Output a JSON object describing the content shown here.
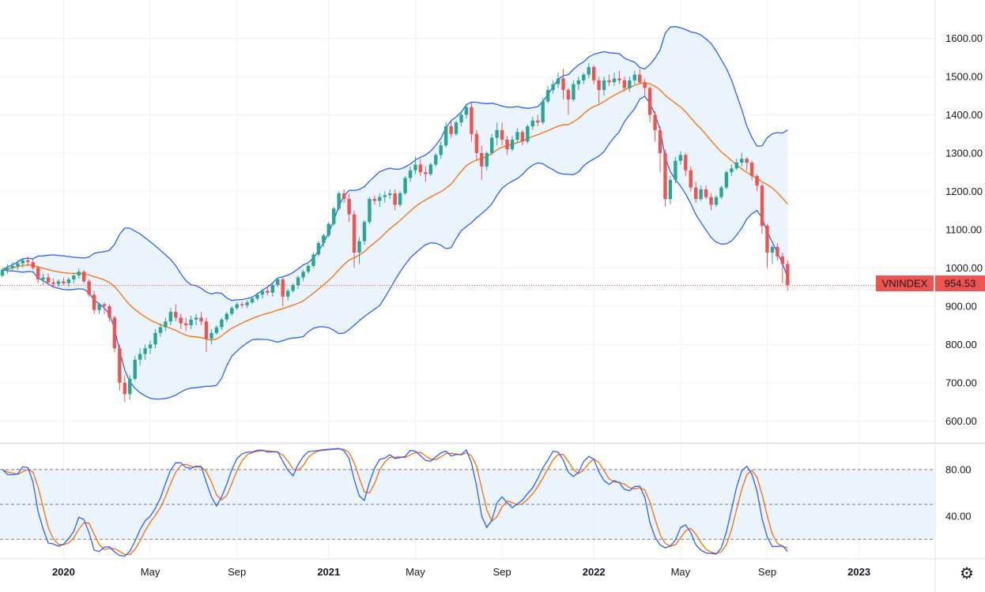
{
  "colors": {
    "up": "#26a69a",
    "down": "#ef5350",
    "bb_band": "#2962ff",
    "bb_basis": "#ff6d00",
    "bb_fill": "#e8f1fb",
    "stoch_k": "#2962ff",
    "stoch_d": "#ff6d00",
    "stoch_fill": "#e3f0fb",
    "grid": "#eef0f3",
    "axis_text": "#131722",
    "price_line": "#ef5350",
    "label_bg": "#ef5350",
    "label_text": "#ffffff"
  },
  "chart_data": {
    "type": "candlestick",
    "symbol": "VNINDEX",
    "last_price": "954.53",
    "price_axis": {
      "range": [
        545,
        1700
      ],
      "ticks": [
        "600.00",
        "700.00",
        "800.00",
        "900.00",
        "1000.00",
        "1100.00",
        "1200.00",
        "1300.00",
        "1400.00",
        "1500.00",
        "1600.00"
      ]
    },
    "time_axis": {
      "labels": [
        {
          "text": "2020",
          "week": 12,
          "bold": true
        },
        {
          "text": "May",
          "week": 29,
          "bold": false
        },
        {
          "text": "Sep",
          "week": 46,
          "bold": false
        },
        {
          "text": "2021",
          "week": 64,
          "bold": true
        },
        {
          "text": "May",
          "week": 81,
          "bold": false
        },
        {
          "text": "Sep",
          "week": 98,
          "bold": false
        },
        {
          "text": "2022",
          "week": 116,
          "bold": true
        },
        {
          "text": "May",
          "week": 133,
          "bold": false
        },
        {
          "text": "Sep",
          "week": 150,
          "bold": false
        },
        {
          "text": "2023",
          "week": 168,
          "bold": true
        }
      ]
    },
    "ohlc_weekly": [
      [
        980,
        1000,
        975,
        995
      ],
      [
        995,
        1010,
        985,
        1000
      ],
      [
        1000,
        1015,
        990,
        1005
      ],
      [
        1005,
        1020,
        995,
        1012
      ],
      [
        1012,
        1025,
        1000,
        1020
      ],
      [
        1020,
        1030,
        1005,
        1015
      ],
      [
        1015,
        1025,
        995,
        1000
      ],
      [
        1000,
        1005,
        960,
        970
      ],
      [
        970,
        985,
        955,
        975
      ],
      [
        975,
        985,
        955,
        962
      ],
      [
        962,
        972,
        948,
        958
      ],
      [
        958,
        970,
        950,
        965
      ],
      [
        965,
        975,
        955,
        960
      ],
      [
        960,
        975,
        950,
        970
      ],
      [
        970,
        985,
        960,
        980
      ],
      [
        980,
        998,
        972,
        990
      ],
      [
        990,
        995,
        960,
        965
      ],
      [
        965,
        970,
        925,
        930
      ],
      [
        930,
        940,
        880,
        890
      ],
      [
        890,
        910,
        880,
        905
      ],
      [
        905,
        910,
        880,
        900
      ],
      [
        900,
        905,
        860,
        870
      ],
      [
        870,
        875,
        780,
        790
      ],
      [
        790,
        800,
        680,
        700
      ],
      [
        700,
        720,
        650,
        670
      ],
      [
        670,
        720,
        655,
        710
      ],
      [
        710,
        770,
        705,
        760
      ],
      [
        760,
        790,
        745,
        775
      ],
      [
        775,
        800,
        760,
        790
      ],
      [
        790,
        810,
        775,
        800
      ],
      [
        800,
        840,
        790,
        830
      ],
      [
        830,
        855,
        820,
        845
      ],
      [
        845,
        870,
        835,
        860
      ],
      [
        860,
        895,
        850,
        885
      ],
      [
        885,
        905,
        860,
        870
      ],
      [
        870,
        880,
        840,
        855
      ],
      [
        855,
        870,
        835,
        850
      ],
      [
        850,
        875,
        840,
        865
      ],
      [
        865,
        880,
        850,
        870
      ],
      [
        870,
        885,
        850,
        860
      ],
      [
        860,
        870,
        780,
        815
      ],
      [
        815,
        840,
        800,
        830
      ],
      [
        830,
        850,
        825,
        845
      ],
      [
        845,
        870,
        838,
        865
      ],
      [
        865,
        885,
        858,
        880
      ],
      [
        880,
        900,
        875,
        895
      ],
      [
        895,
        910,
        890,
        905
      ],
      [
        905,
        912,
        895,
        902
      ],
      [
        902,
        915,
        895,
        910
      ],
      [
        910,
        925,
        905,
        920
      ],
      [
        920,
        935,
        915,
        930
      ],
      [
        930,
        945,
        920,
        940
      ],
      [
        940,
        950,
        928,
        935
      ],
      [
        935,
        960,
        925,
        955
      ],
      [
        955,
        975,
        950,
        970
      ],
      [
        970,
        975,
        900,
        925
      ],
      [
        925,
        945,
        915,
        940
      ],
      [
        940,
        960,
        935,
        955
      ],
      [
        955,
        980,
        945,
        975
      ],
      [
        975,
        995,
        965,
        990
      ],
      [
        990,
        1010,
        985,
        1005
      ],
      [
        1005,
        1040,
        1000,
        1035
      ],
      [
        1035,
        1070,
        1030,
        1065
      ],
      [
        1065,
        1090,
        1055,
        1085
      ],
      [
        1085,
        1120,
        1080,
        1115
      ],
      [
        1115,
        1160,
        1110,
        1155
      ],
      [
        1155,
        1200,
        1150,
        1195
      ],
      [
        1195,
        1205,
        1170,
        1180
      ],
      [
        1180,
        1195,
        1120,
        1140
      ],
      [
        1140,
        1150,
        1000,
        1040
      ],
      [
        1040,
        1080,
        1010,
        1070
      ],
      [
        1070,
        1125,
        1060,
        1120
      ],
      [
        1120,
        1185,
        1115,
        1180
      ],
      [
        1180,
        1190,
        1165,
        1175
      ],
      [
        1175,
        1195,
        1160,
        1185
      ],
      [
        1185,
        1200,
        1170,
        1190
      ],
      [
        1190,
        1205,
        1180,
        1195
      ],
      [
        1195,
        1205,
        1150,
        1165
      ],
      [
        1165,
        1200,
        1160,
        1195
      ],
      [
        1195,
        1240,
        1190,
        1235
      ],
      [
        1235,
        1265,
        1225,
        1255
      ],
      [
        1255,
        1290,
        1245,
        1270
      ],
      [
        1270,
        1285,
        1240,
        1250
      ],
      [
        1250,
        1265,
        1225,
        1245
      ],
      [
        1245,
        1275,
        1240,
        1270
      ],
      [
        1270,
        1300,
        1265,
        1295
      ],
      [
        1295,
        1330,
        1285,
        1320
      ],
      [
        1320,
        1380,
        1315,
        1370
      ],
      [
        1370,
        1385,
        1340,
        1350
      ],
      [
        1350,
        1385,
        1345,
        1380
      ],
      [
        1380,
        1410,
        1370,
        1400
      ],
      [
        1400,
        1430,
        1390,
        1420
      ],
      [
        1420,
        1435,
        1330,
        1350
      ],
      [
        1350,
        1360,
        1280,
        1300
      ],
      [
        1300,
        1320,
        1230,
        1265
      ],
      [
        1265,
        1305,
        1255,
        1300
      ],
      [
        1300,
        1350,
        1295,
        1340
      ],
      [
        1340,
        1380,
        1320,
        1360
      ],
      [
        1360,
        1380,
        1320,
        1335
      ],
      [
        1335,
        1345,
        1295,
        1310
      ],
      [
        1310,
        1345,
        1305,
        1335
      ],
      [
        1335,
        1365,
        1325,
        1355
      ],
      [
        1355,
        1360,
        1320,
        1330
      ],
      [
        1330,
        1375,
        1325,
        1370
      ],
      [
        1370,
        1395,
        1360,
        1385
      ],
      [
        1385,
        1400,
        1370,
        1380
      ],
      [
        1380,
        1445,
        1375,
        1435
      ],
      [
        1435,
        1475,
        1430,
        1465
      ],
      [
        1465,
        1490,
        1455,
        1480
      ],
      [
        1480,
        1510,
        1470,
        1495
      ],
      [
        1495,
        1520,
        1440,
        1465
      ],
      [
        1465,
        1470,
        1400,
        1440
      ],
      [
        1440,
        1490,
        1435,
        1480
      ],
      [
        1480,
        1500,
        1465,
        1490
      ],
      [
        1490,
        1510,
        1480,
        1505
      ],
      [
        1505,
        1535,
        1495,
        1525
      ],
      [
        1525,
        1530,
        1480,
        1490
      ],
      [
        1490,
        1500,
        1430,
        1465
      ],
      [
        1465,
        1500,
        1450,
        1490
      ],
      [
        1490,
        1505,
        1475,
        1485
      ],
      [
        1485,
        1510,
        1475,
        1495
      ],
      [
        1495,
        1515,
        1480,
        1490
      ],
      [
        1490,
        1500,
        1460,
        1470
      ],
      [
        1470,
        1500,
        1460,
        1490
      ],
      [
        1490,
        1515,
        1480,
        1505
      ],
      [
        1505,
        1520,
        1480,
        1485
      ],
      [
        1485,
        1495,
        1450,
        1470
      ],
      [
        1470,
        1475,
        1380,
        1400
      ],
      [
        1400,
        1410,
        1330,
        1360
      ],
      [
        1360,
        1370,
        1250,
        1300
      ],
      [
        1300,
        1310,
        1160,
        1180
      ],
      [
        1180,
        1240,
        1165,
        1230
      ],
      [
        1230,
        1290,
        1220,
        1280
      ],
      [
        1280,
        1305,
        1270,
        1295
      ],
      [
        1295,
        1300,
        1240,
        1255
      ],
      [
        1255,
        1265,
        1200,
        1210
      ],
      [
        1210,
        1225,
        1170,
        1180
      ],
      [
        1180,
        1215,
        1175,
        1205
      ],
      [
        1205,
        1215,
        1180,
        1185
      ],
      [
        1185,
        1195,
        1150,
        1165
      ],
      [
        1165,
        1190,
        1160,
        1185
      ],
      [
        1185,
        1215,
        1180,
        1210
      ],
      [
        1210,
        1255,
        1205,
        1250
      ],
      [
        1250,
        1270,
        1240,
        1260
      ],
      [
        1260,
        1285,
        1255,
        1275
      ],
      [
        1275,
        1300,
        1265,
        1285
      ],
      [
        1285,
        1290,
        1255,
        1275
      ],
      [
        1275,
        1280,
        1230,
        1240
      ],
      [
        1240,
        1245,
        1200,
        1215
      ],
      [
        1215,
        1220,
        1090,
        1110
      ],
      [
        1110,
        1115,
        1000,
        1040
      ],
      [
        1040,
        1060,
        1010,
        1055
      ],
      [
        1055,
        1065,
        1020,
        1030
      ],
      [
        1030,
        1040,
        960,
        1010
      ],
      [
        1010,
        1020,
        940,
        954.53
      ]
    ],
    "bollinger": {
      "period": 20,
      "mult": 2,
      "series": [
        "upper",
        "basis",
        "lower"
      ]
    },
    "stochastic": {
      "k_period": 14,
      "smooth": 3,
      "range": [
        0,
        100
      ],
      "levels": [
        20,
        50,
        80
      ],
      "ticks": [
        "80.00",
        "40.00"
      ]
    }
  }
}
